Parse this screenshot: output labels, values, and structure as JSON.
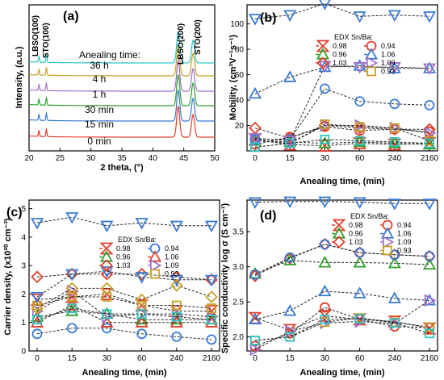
{
  "chart_data": [
    {
      "id": "a",
      "type": "line",
      "panel_label": "(a)",
      "xlabel": "2 theta, (°)",
      "ylabel": "Intensity, (a.u.)",
      "xlim": [
        20,
        50
      ],
      "xticks": [
        "20",
        "25",
        "30",
        "35",
        "40",
        "45",
        "50"
      ],
      "peak_labels": [
        "LBSO(100)",
        "STO(100)",
        "LBSO(200)",
        "STO(200)"
      ],
      "legend_title": "Anealing time:",
      "peaks": [
        21.6,
        22.8,
        44.1,
        46.5
      ],
      "series": [
        {
          "name": "36 h",
          "color": "#2ec4c4",
          "offset": 5
        },
        {
          "name": "4 h",
          "color": "#c8a028",
          "offset": 4
        },
        {
          "name": "1 h",
          "color": "#a070c8",
          "offset": 3
        },
        {
          "name": "30 min",
          "color": "#2ca02c",
          "offset": 2
        },
        {
          "name": "15 min",
          "color": "#3a7ad4",
          "offset": 1
        },
        {
          "name": "0 min",
          "color": "#e0402c",
          "offset": 0
        }
      ]
    },
    {
      "id": "b",
      "type": "scatter",
      "panel_label": "(b)",
      "xlabel": "Anealing time, (min)",
      "ylabel": "Mobility, (cm²V⁻¹s⁻¹)",
      "categories": [
        "0",
        "15",
        "30",
        "60",
        "240",
        "2160"
      ],
      "ylim": [
        0,
        115
      ],
      "yticks": [
        20,
        40,
        60,
        80,
        100
      ],
      "legend_title": "EDX Sn/Ba:",
      "series": [
        {
          "name": "0.98",
          "color": "#e0402c",
          "marker": "hourglass",
          "values": [
            9,
            5,
            4,
            6,
            5,
            6
          ]
        },
        {
          "name": "0.96",
          "color": "#2ca02c",
          "marker": "tri-up",
          "values": [
            8,
            7,
            6,
            7,
            6,
            5
          ]
        },
        {
          "name": "1.03",
          "color": "#e0402c",
          "marker": "diamond",
          "values": [
            18,
            10,
            20,
            18,
            17,
            17
          ]
        },
        {
          "name": "0.94",
          "color": "#e0402c",
          "marker": "circle",
          "values": [
            5,
            11,
            19,
            16,
            17,
            15
          ]
        },
        {
          "name": "1.06",
          "color": "#3a7ad4",
          "marker": "tri-up",
          "values": [
            45,
            58,
            66,
            67,
            65,
            65
          ]
        },
        {
          "name": "1.09",
          "color": "#a070c8",
          "marker": "tri-right",
          "values": [
            8,
            6,
            20,
            20,
            18,
            14
          ]
        },
        {
          "name": "0.93",
          "color": "#c8a028",
          "marker": "square",
          "values": [
            3,
            6,
            21,
            19,
            18,
            8
          ]
        },
        {
          "name": "",
          "color": "#3a7ad4",
          "marker": "tri-down",
          "values": [
            104,
            107,
            116,
            106,
            107,
            106
          ]
        },
        {
          "name": "",
          "color": "#3a7ad4",
          "marker": "circle",
          "values": [
            9,
            9,
            49,
            39,
            37,
            36
          ]
        },
        {
          "name": "",
          "color": "#a070c8",
          "marker": "tri-down",
          "values": [
            10,
            8,
            67,
            66,
            66,
            65
          ]
        },
        {
          "name": "",
          "color": "#2ec4c4",
          "marker": "square",
          "values": [
            3,
            6,
            9,
            8,
            7,
            6
          ]
        }
      ]
    },
    {
      "id": "c",
      "type": "scatter",
      "panel_label": "(c)",
      "xlabel": "Anealing time, (min)",
      "ylabel": "Carrier density, (x10²⁰ cm⁻³)",
      "categories": [
        "0",
        "15",
        "30",
        "60",
        "240",
        "2160"
      ],
      "ylim": [
        0,
        5.3
      ],
      "yticks": [
        0,
        1,
        2,
        3,
        4,
        5
      ],
      "legend_title": "EDX Sn/Ba:",
      "series": [
        {
          "name": "0.98",
          "color": "#e0402c",
          "marker": "hourglass",
          "values": [
            1.8,
            1.9,
            2.0,
            1.6,
            1.4,
            1.4
          ]
        },
        {
          "name": "0.96",
          "color": "#2ca02c",
          "marker": "tri-up",
          "values": [
            1.2,
            1.4,
            1.3,
            1.1,
            1.1,
            1.1
          ]
        },
        {
          "name": "1.03",
          "color": "#e0402c",
          "marker": "diamond",
          "values": [
            2.6,
            2.7,
            2.7,
            2.7,
            2.6,
            2.5
          ]
        },
        {
          "name": "0.94",
          "color": "#3a7ad4",
          "marker": "circle",
          "values": [
            0.6,
            0.8,
            0.8,
            0.6,
            0.5,
            0.4
          ]
        },
        {
          "name": "1.06",
          "color": "#e0402c",
          "marker": "tri-up",
          "values": [
            1.0,
            1.6,
            1.0,
            1.0,
            1.0,
            1.0
          ]
        },
        {
          "name": "1.09",
          "color": "#a070c8",
          "marker": "tri-right",
          "values": [
            1.4,
            2.1,
            1.2,
            1.3,
            1.3,
            1.2
          ]
        },
        {
          "name": "0.93",
          "color": "#c8a028",
          "marker": "square",
          "values": [
            1.6,
            1.9,
            1.9,
            1.6,
            1.6,
            1.5
          ]
        },
        {
          "name": "",
          "color": "#3a7ad4",
          "marker": "tri-down",
          "values": [
            4.5,
            4.7,
            4.4,
            4.5,
            4.4,
            4.4
          ]
        },
        {
          "name": "",
          "color": "#3a7ad4",
          "marker": "tri-down",
          "values": [
            1.9,
            2.7,
            2.8,
            2.6,
            2.5,
            2.5
          ]
        },
        {
          "name": "",
          "color": "#c8a028",
          "marker": "diamond",
          "values": [
            1.5,
            2.2,
            2.2,
            1.8,
            2.3,
            1.9
          ]
        },
        {
          "name": "",
          "color": "#2ec4c4",
          "marker": "square",
          "values": [
            1.1,
            1.5,
            1.3,
            1.3,
            1.2,
            1.1
          ]
        }
      ]
    },
    {
      "id": "d",
      "type": "scatter",
      "panel_label": "(d)",
      "xlabel": "Anealing time, (min)",
      "ylabel": "Specific conductivity log σ (S cm⁻¹)",
      "categories": [
        "0",
        "15",
        "30",
        "60",
        "240",
        "2160"
      ],
      "ylim": [
        1.8,
        3.95
      ],
      "yticks": [
        2.0,
        2.5,
        3.0,
        3.5
      ],
      "legend_title": "EDX Sn/Ba:",
      "series": [
        {
          "name": "0.98",
          "color": "#e0402c",
          "marker": "hourglass",
          "values": [
            2.27,
            2.1,
            2.3,
            2.25,
            2.22,
            2.12
          ]
        },
        {
          "name": "0.96",
          "color": "#2ca02c",
          "marker": "tri-up",
          "values": [
            2.9,
            3.09,
            3.06,
            3.06,
            3.05,
            3.03
          ]
        },
        {
          "name": "1.03",
          "color": "#e0402c",
          "marker": "diamond",
          "values": [
            2.87,
            3.12,
            3.32,
            3.2,
            3.17,
            3.15
          ]
        },
        {
          "name": "0.94",
          "color": "#e0402c",
          "marker": "circle",
          "values": [
            1.87,
            2.05,
            2.42,
            2.25,
            2.15,
            2.13
          ]
        },
        {
          "name": "1.06",
          "color": "#3a7ad4",
          "marker": "tri-up",
          "values": [
            2.25,
            2.37,
            2.65,
            2.62,
            2.55,
            2.52
          ]
        },
        {
          "name": "1.09",
          "color": "#a070c8",
          "marker": "tri-right",
          "values": [
            1.82,
            2.08,
            2.2,
            2.22,
            2.19,
            2.52
          ]
        },
        {
          "name": "0.93",
          "color": "#c8a028",
          "marker": "square",
          "values": [
            1.95,
            2.0,
            2.21,
            2.27,
            2.21,
            2.14
          ]
        },
        {
          "name": "",
          "color": "#3a7ad4",
          "marker": "tri-down",
          "values": [
            3.92,
            3.93,
            3.93,
            3.92,
            3.9,
            3.9
          ]
        },
        {
          "name": "",
          "color": "#3a7ad4",
          "marker": "circle",
          "values": [
            2.89,
            3.13,
            3.32,
            3.2,
            3.17,
            3.15
          ]
        },
        {
          "name": "",
          "color": "#2ec4c4",
          "marker": "square",
          "values": [
            1.95,
            2.0,
            2.25,
            2.26,
            2.2,
            2.05
          ]
        }
      ]
    }
  ]
}
